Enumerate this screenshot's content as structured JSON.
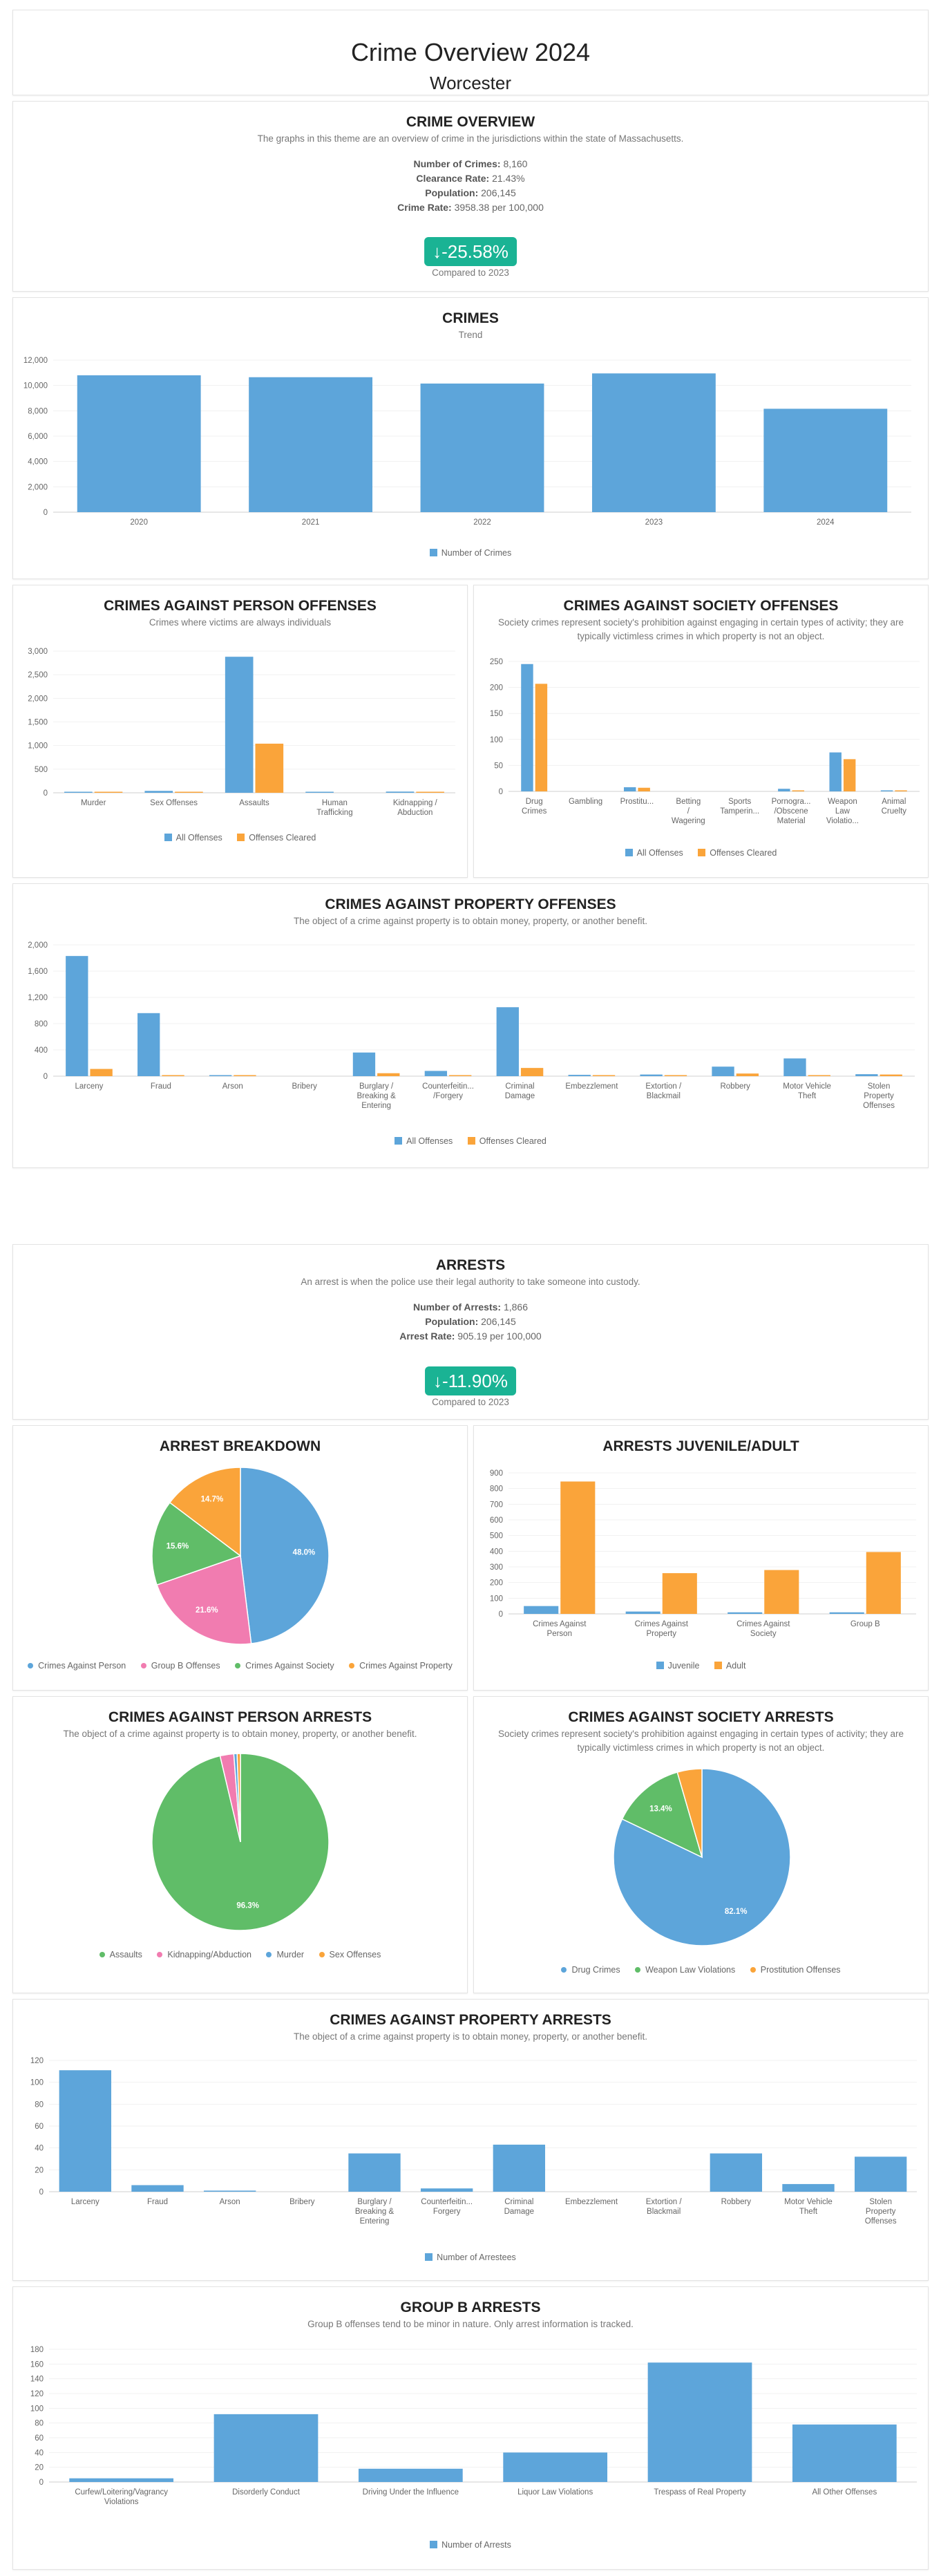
{
  "header": {
    "title": "Crime Overview 2024",
    "city": "Worcester"
  },
  "overview": {
    "title": "CRIME OVERVIEW",
    "subtitle": "The graphs in this theme are an overview of crime in the jurisdictions within the state of Massachusetts.",
    "stats": [
      {
        "label": "Number of Crimes:",
        "value": "8,160"
      },
      {
        "label": "Clearance Rate:",
        "value": "21.43%"
      },
      {
        "label": "Population:",
        "value": "206,145"
      },
      {
        "label": "Crime Rate:",
        "value": "3958.38 per 100,000"
      }
    ],
    "change": "-25.58%",
    "compared": "Compared to 2023"
  },
  "crimes_trend": {
    "title": "CRIMES",
    "subtitle": "Trend",
    "legend": [
      {
        "name": "Number of Crimes",
        "color": "#5da5da"
      }
    ]
  },
  "person_offenses": {
    "title": "CRIMES AGAINST PERSON OFFENSES",
    "subtitle": "Crimes where victims are always individuals",
    "legend": [
      {
        "name": "All Offenses",
        "color": "#5da5da"
      },
      {
        "name": "Offenses Cleared",
        "color": "#faa43a"
      }
    ]
  },
  "society_offenses": {
    "title": "CRIMES AGAINST SOCIETY OFFENSES",
    "subtitle": "Society crimes represent society's prohibition against engaging in certain types of activity; they are typically victimless crimes in which property is not an object.",
    "legend": [
      {
        "name": "All Offenses",
        "color": "#5da5da"
      },
      {
        "name": "Offenses Cleared",
        "color": "#faa43a"
      }
    ]
  },
  "property_offenses": {
    "title": "CRIMES AGAINST PROPERTY OFFENSES",
    "subtitle": "The object of a crime against property is to obtain money, property, or another benefit.",
    "legend": [
      {
        "name": "All Offenses",
        "color": "#5da5da"
      },
      {
        "name": "Offenses Cleared",
        "color": "#faa43a"
      }
    ]
  },
  "arrests": {
    "title": "ARRESTS",
    "subtitle": "An arrest is when the police use their legal authority to take someone into custody.",
    "stats": [
      {
        "label": "Number of Arrests:",
        "value": "1,866"
      },
      {
        "label": "Population:",
        "value": "206,145"
      },
      {
        "label": "Arrest Rate:",
        "value": "905.19 per 100,000"
      }
    ],
    "change": "-11.90%",
    "compared": "Compared to 2023"
  },
  "arrest_breakdown": {
    "title": "ARREST BREAKDOWN",
    "legend": [
      {
        "name": "Crimes Against Person",
        "color": "#5da5da"
      },
      {
        "name": "Group B Offenses",
        "color": "#f17cb0"
      },
      {
        "name": "Crimes Against Society",
        "color": "#60bd68"
      },
      {
        "name": "Crimes Against Property",
        "color": "#faa43a"
      }
    ]
  },
  "juvenile_adult": {
    "title": "ARRESTS JUVENILE/ADULT",
    "legend": [
      {
        "name": "Juvenile",
        "color": "#5da5da"
      },
      {
        "name": "Adult",
        "color": "#faa43a"
      }
    ]
  },
  "person_arrests": {
    "title": "CRIMES AGAINST PERSON ARRESTS",
    "subtitle": "The object of a crime against property is to obtain money, property, or another benefit.",
    "legend": [
      {
        "name": "Assaults",
        "color": "#60bd68"
      },
      {
        "name": "Kidnapping/Abduction",
        "color": "#f17cb0"
      },
      {
        "name": "Murder",
        "color": "#5da5da"
      },
      {
        "name": "Sex Offenses",
        "color": "#faa43a"
      }
    ]
  },
  "society_arrests": {
    "title": "CRIMES AGAINST SOCIETY ARRESTS",
    "subtitle": "Society crimes represent society's prohibition against engaging in certain types of activity; they are typically victimless crimes in which property is not an object.",
    "legend": [
      {
        "name": "Drug Crimes",
        "color": "#5da5da"
      },
      {
        "name": "Weapon Law Violations",
        "color": "#60bd68"
      },
      {
        "name": "Prostitution Offenses",
        "color": "#faa43a"
      }
    ]
  },
  "property_arrests": {
    "title": "CRIMES AGAINST PROPERTY ARRESTS",
    "subtitle": "The object of a crime against property is to obtain money, property, or another benefit.",
    "legend": [
      {
        "name": "Number of Arrestees",
        "color": "#5da5da"
      }
    ]
  },
  "groupb_arrests": {
    "title": "GROUP B ARRESTS",
    "subtitle": "Group B offenses tend to be minor in nature. Only arrest information is tracked.",
    "legend": [
      {
        "name": "Number of Arrests",
        "color": "#5da5da"
      }
    ]
  },
  "chart_data": [
    {
      "id": "crimes_trend",
      "type": "bar",
      "title": "CRIMES",
      "categories": [
        [
          "2020"
        ],
        [
          "2021"
        ],
        [
          "2022"
        ],
        [
          "2023"
        ],
        [
          "2024"
        ]
      ],
      "series": [
        {
          "name": "Number of Crimes",
          "color": "#5da5da",
          "values": [
            10800,
            10650,
            10150,
            10950,
            8160
          ]
        }
      ],
      "ylim": [
        0,
        12000
      ],
      "yticks": [
        0,
        2000,
        4000,
        6000,
        8000,
        10000,
        12000
      ]
    },
    {
      "id": "person_offenses",
      "type": "bar",
      "title": "CRIMES AGAINST PERSON OFFENSES",
      "categories": [
        [
          "Murder"
        ],
        [
          "Sex Offenses"
        ],
        [
          "Assaults"
        ],
        [
          "Human",
          "Trafficking"
        ],
        [
          "Kidnapping /",
          "Abduction"
        ]
      ],
      "series": [
        {
          "name": "All Offenses",
          "color": "#5da5da",
          "values": [
            8,
            40,
            2880,
            2,
            25
          ]
        },
        {
          "name": "Offenses Cleared",
          "color": "#faa43a",
          "values": [
            3,
            10,
            1040,
            0,
            15
          ]
        }
      ],
      "ylim": [
        0,
        3000
      ],
      "yticks": [
        0,
        500,
        1000,
        1500,
        2000,
        2500,
        3000
      ]
    },
    {
      "id": "society_offenses",
      "type": "bar",
      "title": "CRIMES AGAINST SOCIETY OFFENSES",
      "categories": [
        [
          "Drug",
          "Crimes"
        ],
        [
          "Gambling"
        ],
        [
          "Prostitu..."
        ],
        [
          "Betting",
          "/",
          "Wagering"
        ],
        [
          "Sports",
          "Tamperin..."
        ],
        [
          "Pornogra...",
          "/Obscene",
          "Material"
        ],
        [
          "Weapon",
          "Law",
          "Violatio..."
        ],
        [
          "Animal",
          "Cruelty"
        ]
      ],
      "series": [
        {
          "name": "All Offenses",
          "color": "#5da5da",
          "values": [
            245,
            0,
            8,
            0,
            0,
            5,
            75,
            2
          ]
        },
        {
          "name": "Offenses Cleared",
          "color": "#faa43a",
          "values": [
            207,
            0,
            7,
            0,
            0,
            2,
            62,
            1
          ]
        }
      ],
      "ylim": [
        0,
        250
      ],
      "yticks": [
        0,
        50,
        100,
        150,
        200,
        250
      ]
    },
    {
      "id": "property_offenses",
      "type": "bar",
      "title": "CRIMES AGAINST PROPERTY OFFENSES",
      "categories": [
        [
          "Larceny"
        ],
        [
          "Fraud"
        ],
        [
          "Arson"
        ],
        [
          "Bribery"
        ],
        [
          "Burglary /",
          "Breaking &",
          "Entering"
        ],
        [
          "Counterfeitin...",
          "/Forgery"
        ],
        [
          "Criminal",
          "Damage"
        ],
        [
          "Embezzlement"
        ],
        [
          "Extortion /",
          "Blackmail"
        ],
        [
          "Robbery"
        ],
        [
          "Motor Vehicle",
          "Theft"
        ],
        [
          "Stolen",
          "Property",
          "Offenses"
        ]
      ],
      "series": [
        {
          "name": "All Offenses",
          "color": "#5da5da",
          "values": [
            1830,
            960,
            10,
            0,
            360,
            80,
            1050,
            20,
            25,
            145,
            270,
            30
          ]
        },
        {
          "name": "Offenses Cleared",
          "color": "#faa43a",
          "values": [
            110,
            10,
            3,
            0,
            45,
            15,
            125,
            2,
            5,
            40,
            10,
            25
          ]
        }
      ],
      "ylim": [
        0,
        2000
      ],
      "yticks": [
        0,
        400,
        800,
        1200,
        1600,
        2000
      ]
    },
    {
      "id": "arrest_breakdown",
      "type": "pie",
      "title": "ARREST BREAKDOWN",
      "labels": [
        "Crimes Against Person",
        "Group B Offenses",
        "Crimes Against Society",
        "Crimes Against Property"
      ],
      "values": [
        48.0,
        21.6,
        15.6,
        14.7
      ],
      "colors": [
        "#5da5da",
        "#f17cb0",
        "#60bd68",
        "#faa43a"
      ],
      "label_texts": [
        "48.0%",
        "21.6%",
        "15.6%",
        "14.7%"
      ]
    },
    {
      "id": "juvenile_adult",
      "type": "bar",
      "title": "ARRESTS JUVENILE/ADULT",
      "categories": [
        [
          "Crimes Against",
          "Person"
        ],
        [
          "Crimes Against",
          "Property"
        ],
        [
          "Crimes Against",
          "Society"
        ],
        [
          "Group B"
        ]
      ],
      "series": [
        {
          "name": "Juvenile",
          "color": "#5da5da",
          "values": [
            50,
            15,
            10,
            10
          ]
        },
        {
          "name": "Adult",
          "color": "#faa43a",
          "values": [
            845,
            260,
            280,
            395
          ]
        }
      ],
      "ylim": [
        0,
        900
      ],
      "yticks": [
        0,
        100,
        200,
        300,
        400,
        500,
        600,
        700,
        800,
        900
      ]
    },
    {
      "id": "person_arrests",
      "type": "pie",
      "title": "CRIMES AGAINST PERSON ARRESTS",
      "labels": [
        "Assaults",
        "Kidnapping/Abduction",
        "Murder",
        "Sex Offenses"
      ],
      "values": [
        96.3,
        2.5,
        0.6,
        0.6
      ],
      "colors": [
        "#60bd68",
        "#f17cb0",
        "#5da5da",
        "#faa43a"
      ],
      "label_texts": [
        "96.3%",
        "",
        "",
        ""
      ]
    },
    {
      "id": "society_arrests",
      "type": "pie",
      "title": "CRIMES AGAINST SOCIETY ARRESTS",
      "labels": [
        "Drug Crimes",
        "Weapon Law Violations",
        "Prostitution Offenses"
      ],
      "values": [
        82.1,
        13.4,
        4.5
      ],
      "colors": [
        "#5da5da",
        "#60bd68",
        "#faa43a"
      ],
      "label_texts": [
        "82.1%",
        "13.4%",
        ""
      ]
    },
    {
      "id": "property_arrests",
      "type": "bar",
      "title": "CRIMES AGAINST PROPERTY ARRESTS",
      "categories": [
        [
          "Larceny"
        ],
        [
          "Fraud"
        ],
        [
          "Arson"
        ],
        [
          "Bribery"
        ],
        [
          "Burglary /",
          "Breaking &",
          "Entering"
        ],
        [
          "Counterfeitin...",
          "Forgery"
        ],
        [
          "Criminal",
          "Damage"
        ],
        [
          "Embezzlement"
        ],
        [
          "Extortion /",
          "Blackmail"
        ],
        [
          "Robbery"
        ],
        [
          "Motor Vehicle",
          "Theft"
        ],
        [
          "Stolen",
          "Property",
          "Offenses"
        ]
      ],
      "series": [
        {
          "name": "Number of Arrestees",
          "color": "#5da5da",
          "values": [
            111,
            6,
            1,
            0,
            35,
            3,
            43,
            0,
            0,
            35,
            7,
            32
          ]
        }
      ],
      "ylim": [
        0,
        120
      ],
      "yticks": [
        0,
        20,
        40,
        60,
        80,
        100,
        120
      ]
    },
    {
      "id": "groupb_arrests",
      "type": "bar",
      "title": "GROUP B ARRESTS",
      "categories": [
        [
          "Curfew/Loitering/Vagrancy",
          "Violations"
        ],
        [
          "Disorderly Conduct"
        ],
        [
          "Driving Under the Influence"
        ],
        [
          "Liquor Law Violations"
        ],
        [
          "Trespass of Real Property"
        ],
        [
          "All Other Offenses"
        ]
      ],
      "series": [
        {
          "name": "Number of Arrests",
          "color": "#5da5da",
          "values": [
            5,
            92,
            18,
            40,
            162,
            78
          ]
        }
      ],
      "ylim": [
        0,
        180
      ],
      "yticks": [
        0,
        20,
        40,
        60,
        80,
        100,
        120,
        140,
        160,
        180
      ]
    }
  ]
}
